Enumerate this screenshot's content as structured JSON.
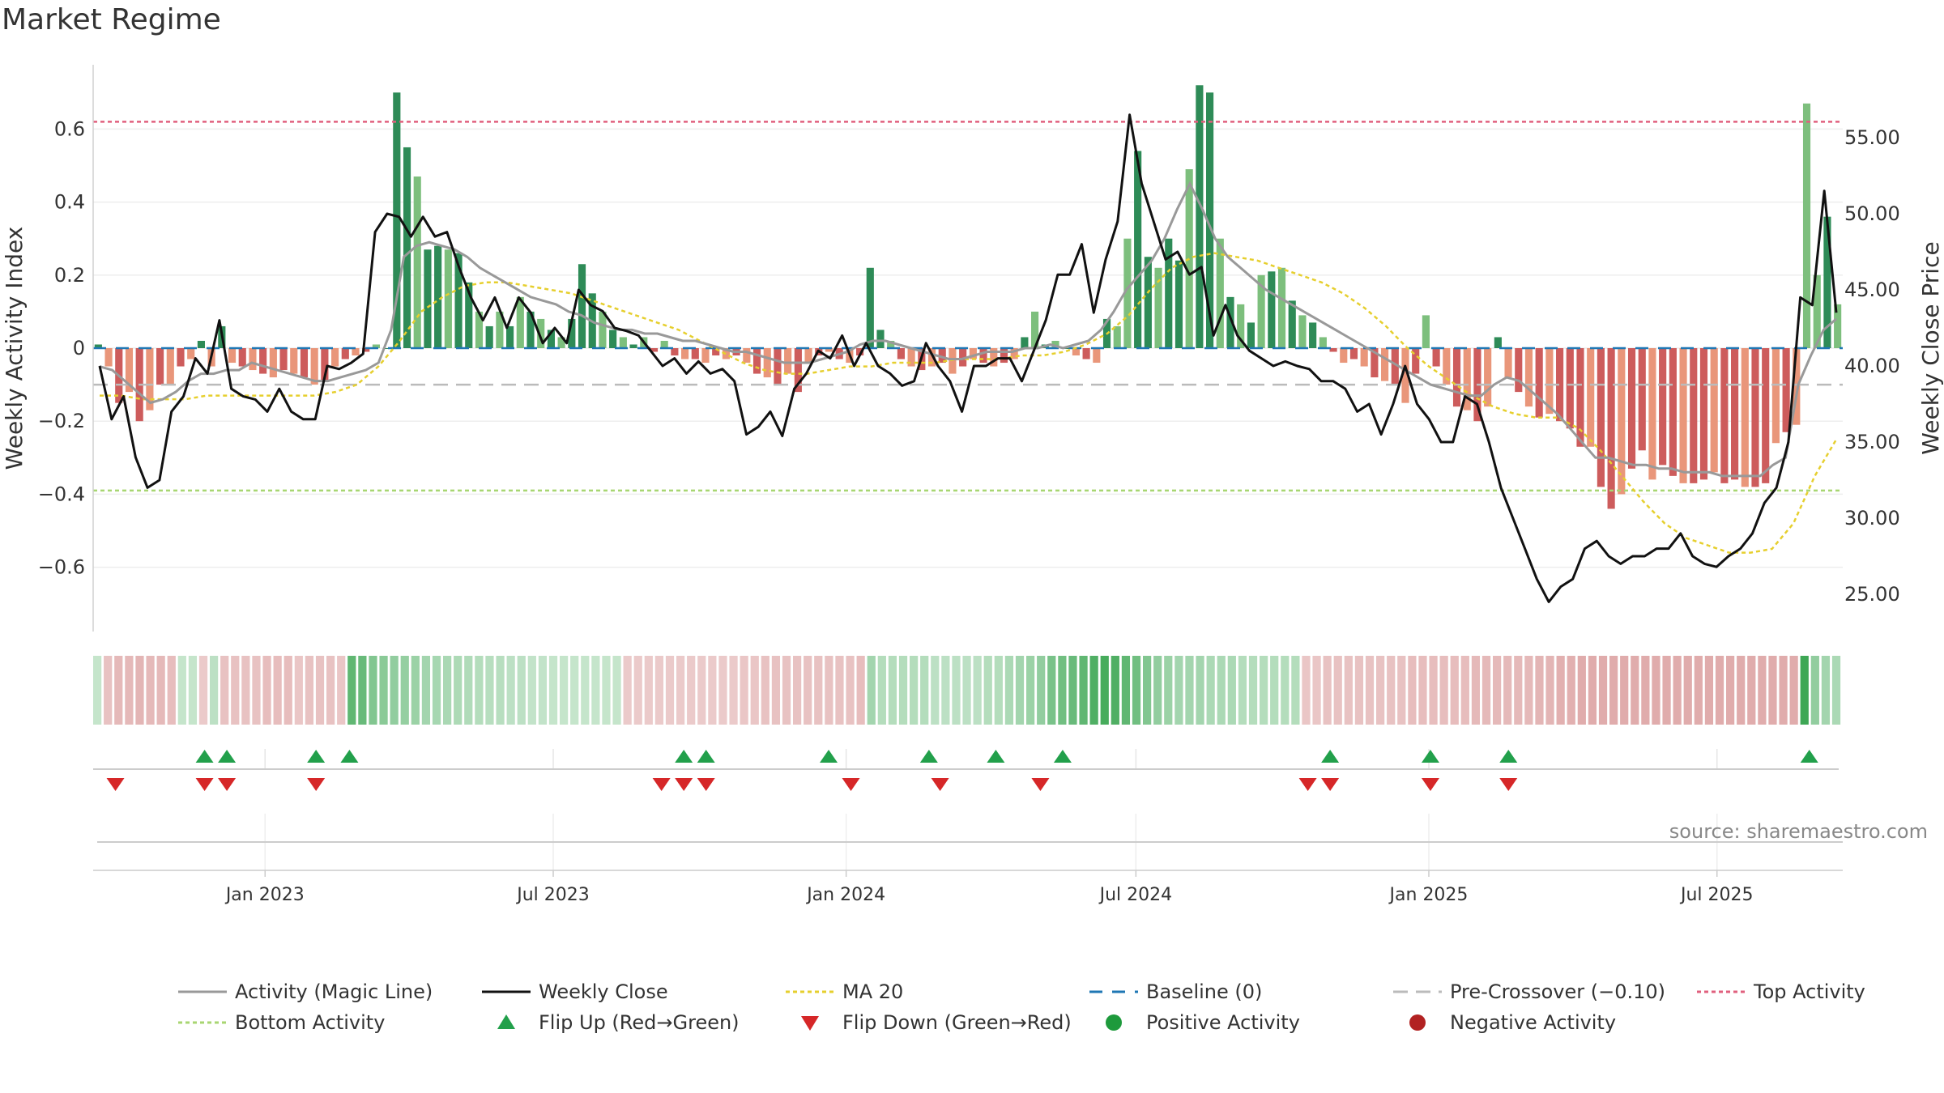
{
  "page": {
    "title": "Market Regime",
    "source": "source: sharemaestro.com"
  },
  "colors": {
    "pos_strong": "#2e8b57",
    "pos_light": "#7dbf7d",
    "neg_strong": "#cd5c5c",
    "neg_light": "#e9967a",
    "weekly_close": "#111111",
    "magic_line": "#999999",
    "ma20": "#e6cf2e",
    "baseline": "#1f77b4",
    "pre_crossover": "#bbbbbb",
    "top_activity": "#e0607e",
    "bottom_activity": "#a8d672",
    "flip_up": "#22a04b",
    "flip_down": "#d62728"
  },
  "chart_data": {
    "type": "bar",
    "title": "",
    "start": "2022-09-15",
    "interval": "week",
    "ylabel": "Weekly Activity Index",
    "y2label": "Weekly Close Price",
    "ylim": [
      -0.77,
      0.77
    ],
    "y2lim": [
      22.0,
      60.0
    ],
    "yticks": [
      "0.6",
      "0.4",
      "0.2",
      "0",
      "−0.2",
      "−0.4",
      "−0.6"
    ],
    "y2ticks": [
      "55.00",
      "50.00",
      "45.00",
      "40.00",
      "35.00",
      "30.00",
      "25.00"
    ],
    "xticks": [
      "Jan 2023",
      "Jul 2023",
      "Jan 2024",
      "Jul 2024",
      "Jan 2025",
      "Jul 2025"
    ],
    "reference_lines": {
      "top_activity": 0.62,
      "bottom_activity": -0.39,
      "pre_crossover": -0.1,
      "baseline": 0
    },
    "activity": [
      0.01,
      -0.05,
      -0.15,
      -0.12,
      -0.2,
      -0.17,
      -0.1,
      -0.1,
      -0.05,
      -0.03,
      0.02,
      -0.05,
      0.06,
      -0.04,
      -0.05,
      -0.06,
      -0.07,
      -0.08,
      -0.06,
      -0.07,
      -0.08,
      -0.1,
      -0.09,
      -0.05,
      -0.03,
      -0.02,
      -0.01,
      0.01,
      0.0,
      0.7,
      0.55,
      0.47,
      0.27,
      0.28,
      0.27,
      0.26,
      0.18,
      0.1,
      0.06,
      0.1,
      0.06,
      0.14,
      0.1,
      0.08,
      0.05,
      0.03,
      0.08,
      0.23,
      0.15,
      0.1,
      0.05,
      0.03,
      0.01,
      0.03,
      -0.01,
      0.02,
      -0.02,
      -0.03,
      -0.03,
      -0.04,
      -0.02,
      -0.03,
      -0.02,
      -0.04,
      -0.07,
      -0.08,
      -0.1,
      -0.07,
      -0.12,
      -0.04,
      -0.02,
      -0.01,
      -0.03,
      -0.04,
      -0.02,
      0.22,
      0.05,
      0.02,
      -0.03,
      -0.05,
      -0.06,
      -0.05,
      -0.04,
      -0.07,
      -0.05,
      -0.03,
      -0.04,
      -0.05,
      -0.04,
      -0.03,
      0.03,
      0.1,
      0.01,
      0.02,
      0.0,
      -0.02,
      -0.03,
      -0.04,
      0.08,
      0.06,
      0.3,
      0.54,
      0.25,
      0.22,
      0.3,
      0.24,
      0.49,
      0.72,
      0.7,
      0.3,
      0.14,
      0.12,
      0.07,
      0.2,
      0.21,
      0.22,
      0.13,
      0.09,
      0.07,
      0.03,
      -0.01,
      -0.04,
      -0.03,
      -0.05,
      -0.08,
      -0.09,
      -0.1,
      -0.15,
      -0.07,
      0.09,
      -0.05,
      -0.1,
      -0.16,
      -0.17,
      -0.2,
      -0.16,
      0.03,
      -0.08,
      -0.12,
      -0.16,
      -0.19,
      -0.18,
      -0.2,
      -0.22,
      -0.27,
      -0.27,
      -0.38,
      -0.44,
      -0.4,
      -0.33,
      -0.28,
      -0.36,
      -0.32,
      -0.35,
      -0.37,
      -0.37,
      -0.36,
      -0.34,
      -0.37,
      -0.36,
      -0.38,
      -0.38,
      -0.37,
      -0.26,
      -0.23,
      -0.21,
      0.67,
      0.2,
      0.36,
      0.12
    ],
    "weekly_close": [
      40.0,
      36.5,
      38.0,
      34.0,
      32.0,
      32.5,
      37.0,
      38.0,
      40.5,
      39.5,
      43.0,
      38.5,
      38.0,
      37.8,
      37.0,
      38.5,
      37.0,
      36.5,
      36.5,
      40.0,
      39.8,
      40.2,
      40.8,
      48.8,
      50.0,
      49.8,
      48.5,
      49.8,
      48.5,
      48.8,
      46.5,
      44.5,
      43.0,
      44.5,
      42.5,
      44.5,
      43.5,
      41.5,
      42.5,
      41.5,
      45.0,
      44.0,
      43.6,
      42.5,
      42.3,
      42.0,
      41.0,
      40.0,
      40.5,
      39.5,
      40.3,
      39.5,
      39.8,
      39.0,
      35.5,
      36.0,
      37.0,
      35.4,
      38.5,
      39.5,
      41.0,
      40.5,
      42.0,
      40.0,
      41.5,
      40.0,
      39.5,
      38.7,
      39.0,
      41.5,
      40.0,
      39.0,
      37.0,
      40.0,
      40.0,
      40.5,
      40.5,
      39.0,
      41.0,
      43.0,
      46.0,
      46.0,
      48.0,
      43.5,
      47.0,
      49.5,
      56.5,
      52.0,
      49.5,
      47.0,
      47.5,
      46.0,
      46.5,
      42.0,
      44.0,
      42.0,
      41.0,
      40.5,
      40.0,
      40.3,
      40.0,
      39.8,
      39.0,
      39.0,
      38.5,
      37.0,
      37.5,
      35.5,
      37.5,
      40.0,
      37.5,
      36.5,
      35.0,
      35.0,
      38.0,
      37.5,
      35.0,
      32.0,
      30.0,
      28.0,
      26.0,
      24.5,
      25.5,
      26.0,
      28.0,
      28.5,
      27.5,
      27.0,
      27.5,
      27.5,
      28.0,
      28.0,
      29.0,
      27.5,
      27.0,
      26.8,
      27.5,
      28.0,
      29.0,
      31.0,
      32.0,
      35.0,
      44.5,
      44.0,
      51.5,
      43.5
    ],
    "magic_line": [
      -0.05,
      -0.06,
      -0.09,
      -0.12,
      -0.15,
      -0.14,
      -0.12,
      -0.09,
      -0.07,
      -0.07,
      -0.06,
      -0.06,
      -0.04,
      -0.05,
      -0.06,
      -0.07,
      -0.08,
      -0.09,
      -0.09,
      -0.08,
      -0.07,
      -0.06,
      -0.04,
      0.05,
      0.25,
      0.28,
      0.29,
      0.28,
      0.27,
      0.25,
      0.22,
      0.2,
      0.18,
      0.16,
      0.14,
      0.13,
      0.12,
      0.1,
      0.09,
      0.07,
      0.06,
      0.05,
      0.05,
      0.04,
      0.04,
      0.03,
      0.02,
      0.02,
      0.01,
      0.0,
      -0.01,
      -0.01,
      -0.02,
      -0.03,
      -0.04,
      -0.04,
      -0.04,
      -0.03,
      -0.02,
      -0.01,
      0.01,
      0.02,
      0.02,
      0.01,
      0.0,
      -0.01,
      -0.02,
      -0.03,
      -0.03,
      -0.02,
      -0.01,
      -0.01,
      -0.01,
      0.0,
      0.0,
      0.01,
      0.0,
      0.01,
      0.02,
      0.05,
      0.1,
      0.16,
      0.2,
      0.24,
      0.3,
      0.38,
      0.45,
      0.38,
      0.3,
      0.25,
      0.22,
      0.19,
      0.16,
      0.14,
      0.12,
      0.1,
      0.08,
      0.06,
      0.04,
      0.02,
      0.0,
      -0.02,
      -0.04,
      -0.06,
      -0.08,
      -0.1,
      -0.11,
      -0.12,
      -0.13,
      -0.13,
      -0.1,
      -0.08,
      -0.09,
      -0.12,
      -0.15,
      -0.18,
      -0.22,
      -0.26,
      -0.3,
      -0.3,
      -0.31,
      -0.32,
      -0.32,
      -0.33,
      -0.33,
      -0.34,
      -0.34,
      -0.34,
      -0.35,
      -0.35,
      -0.35,
      -0.35,
      -0.32,
      -0.3,
      -0.1,
      -0.02,
      0.05,
      0.08
    ],
    "ma20": [
      -0.13,
      -0.13,
      -0.14,
      -0.14,
      -0.14,
      -0.13,
      -0.13,
      -0.13,
      -0.13,
      -0.13,
      -0.13,
      -0.12,
      -0.1,
      -0.05,
      0.02,
      0.1,
      0.14,
      0.17,
      0.18,
      0.18,
      0.17,
      0.16,
      0.15,
      0.13,
      0.11,
      0.09,
      0.07,
      0.05,
      0.02,
      -0.01,
      -0.04,
      -0.06,
      -0.07,
      -0.07,
      -0.06,
      -0.05,
      -0.05,
      -0.04,
      -0.04,
      -0.04,
      -0.03,
      -0.03,
      -0.03,
      -0.02,
      -0.02,
      -0.01,
      0.01,
      0.04,
      0.09,
      0.16,
      0.22,
      0.25,
      0.26,
      0.25,
      0.24,
      0.22,
      0.2,
      0.18,
      0.15,
      0.11,
      0.06,
      0.0,
      -0.05,
      -0.09,
      -0.13,
      -0.16,
      -0.18,
      -0.19,
      -0.19,
      -0.22,
      -0.28,
      -0.35,
      -0.42,
      -0.48,
      -0.52,
      -0.54,
      -0.56,
      -0.56,
      -0.55,
      -0.48,
      -0.35,
      -0.25
    ],
    "heatmap_strip": [
      0.1,
      -0.3,
      -0.4,
      -0.4,
      -0.45,
      -0.4,
      -0.4,
      -0.35,
      0.1,
      0.1,
      -0.2,
      0.15,
      -0.3,
      -0.3,
      -0.3,
      -0.3,
      -0.35,
      -0.35,
      -0.35,
      -0.25,
      -0.3,
      -0.3,
      -0.3,
      -0.25,
      0.7,
      0.65,
      0.5,
      0.45,
      0.4,
      0.38,
      0.35,
      0.3,
      0.28,
      0.26,
      0.24,
      0.22,
      0.2,
      0.18,
      0.18,
      0.15,
      0.15,
      0.12,
      0.12,
      0.1,
      0.1,
      0.1,
      0.1,
      0.1,
      0.1,
      0.1,
      -0.2,
      -0.2,
      -0.2,
      -0.2,
      -0.2,
      -0.2,
      -0.2,
      -0.2,
      -0.2,
      -0.2,
      -0.2,
      -0.25,
      -0.25,
      -0.3,
      -0.3,
      -0.3,
      -0.3,
      -0.3,
      -0.3,
      -0.3,
      -0.3,
      -0.3,
      -0.35,
      0.3,
      0.2,
      0.2,
      0.2,
      0.2,
      0.2,
      0.15,
      0.15,
      0.15,
      0.15,
      0.15,
      0.2,
      0.2,
      0.25,
      0.3,
      0.35,
      0.4,
      0.55,
      0.6,
      0.65,
      0.7,
      0.8,
      0.85,
      0.8,
      0.7,
      0.6,
      0.5,
      0.4,
      0.35,
      0.3,
      0.3,
      0.3,
      0.25,
      0.25,
      0.25,
      0.2,
      0.2,
      0.2,
      0.2,
      0.2,
      0.2,
      -0.25,
      -0.25,
      -0.3,
      -0.3,
      -0.3,
      -0.3,
      -0.3,
      -0.3,
      -0.3,
      -0.3,
      -0.35,
      -0.35,
      -0.35,
      -0.35,
      -0.35,
      -0.35,
      -0.4,
      -0.4,
      -0.4,
      -0.4,
      -0.4,
      -0.4,
      -0.45,
      -0.45,
      -0.5,
      -0.5,
      -0.55,
      -0.55,
      -0.55,
      -0.55,
      -0.55,
      -0.55,
      -0.55,
      -0.55,
      -0.55,
      -0.55,
      -0.55,
      -0.55,
      -0.55,
      -0.55,
      -0.55,
      -0.55,
      -0.55,
      -0.55,
      -0.55,
      -0.55,
      -0.55,
      0.9,
      0.4,
      0.3,
      0.25
    ],
    "flip_up_dates": [
      "2022-11-24",
      "2022-12-08",
      "2023-02-02",
      "2023-02-23",
      "2023-09-21",
      "2023-10-05",
      "2023-12-21",
      "2024-02-22",
      "2024-04-04",
      "2024-05-16",
      "2024-10-31",
      "2025-01-02",
      "2025-02-20",
      "2025-08-28"
    ],
    "flip_down_dates": [
      "2022-09-29",
      "2022-11-24",
      "2022-12-08",
      "2023-02-02",
      "2023-09-07",
      "2023-09-21",
      "2023-10-05",
      "2024-01-04",
      "2024-02-29",
      "2024-05-02",
      "2024-10-17",
      "2024-10-31",
      "2025-01-02",
      "2025-02-20"
    ],
    "legend": [
      {
        "key": "magic",
        "label": "Activity (Magic Line)"
      },
      {
        "key": "close",
        "label": "Weekly Close"
      },
      {
        "key": "ma20",
        "label": "MA 20"
      },
      {
        "key": "baseline",
        "label": "Baseline (0)"
      },
      {
        "key": "pre",
        "label": "Pre-Crossover (−0.10)"
      },
      {
        "key": "top",
        "label": "Top Activity"
      },
      {
        "key": "bottom",
        "label": "Bottom Activity"
      },
      {
        "key": "flipup",
        "label": "Flip Up (Red→Green)"
      },
      {
        "key": "flipdown",
        "label": "Flip Down (Green→Red)"
      },
      {
        "key": "posact",
        "label": "Positive Activity"
      },
      {
        "key": "negact",
        "label": "Negative Activity"
      }
    ],
    "legend_placement": "bottom"
  }
}
